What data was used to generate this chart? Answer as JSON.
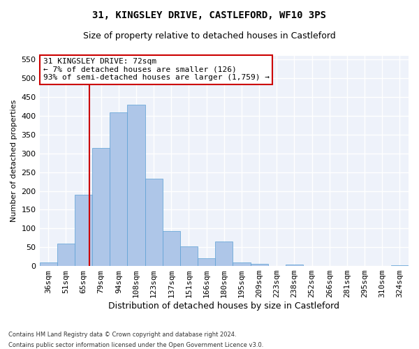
{
  "title": "31, KINGSLEY DRIVE, CASTLEFORD, WF10 3PS",
  "subtitle": "Size of property relative to detached houses in Castleford",
  "xlabel": "Distribution of detached houses by size in Castleford",
  "ylabel": "Number of detached properties",
  "categories": [
    "36sqm",
    "51sqm",
    "65sqm",
    "79sqm",
    "94sqm",
    "108sqm",
    "123sqm",
    "137sqm",
    "151sqm",
    "166sqm",
    "180sqm",
    "195sqm",
    "209sqm",
    "223sqm",
    "238sqm",
    "252sqm",
    "266sqm",
    "281sqm",
    "295sqm",
    "310sqm",
    "324sqm"
  ],
  "values": [
    10,
    60,
    190,
    315,
    410,
    430,
    232,
    93,
    53,
    20,
    65,
    9,
    6,
    0,
    4,
    0,
    0,
    0,
    0,
    0,
    2
  ],
  "bar_color": "#aec6e8",
  "bar_edge_color": "#5a9fd4",
  "annotation_text": "31 KINGSLEY DRIVE: 72sqm\n← 7% of detached houses are smaller (126)\n93% of semi-detached houses are larger (1,759) →",
  "annotation_box_color": "#ffffff",
  "annotation_box_edge_color": "#cc0000",
  "vline_color": "#cc0000",
  "vline_x_index": 2.35,
  "ylim": [
    0,
    560
  ],
  "yticks": [
    0,
    50,
    100,
    150,
    200,
    250,
    300,
    350,
    400,
    450,
    500,
    550
  ],
  "bg_color": "#eef2fa",
  "grid_color": "#ffffff",
  "footer_line1": "Contains HM Land Registry data © Crown copyright and database right 2024.",
  "footer_line2": "Contains public sector information licensed under the Open Government Licence v3.0.",
  "title_fontsize": 10,
  "subtitle_fontsize": 9,
  "xlabel_fontsize": 9,
  "ylabel_fontsize": 8
}
